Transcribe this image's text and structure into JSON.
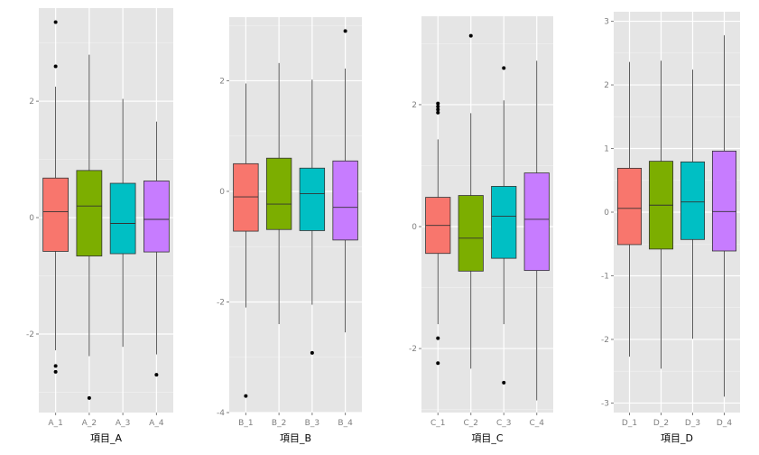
{
  "chart_data": [
    {
      "type": "box",
      "xlabel": "項目_A",
      "ylabel": "",
      "ylim": [
        -3.35,
        3.6
      ],
      "yticks": [
        -2,
        0,
        2
      ],
      "ytick_labels": [
        "-2",
        "0",
        "2"
      ],
      "categories": [
        "A_1",
        "A_2",
        "A_3",
        "A_4"
      ],
      "boxes": [
        {
          "whisker_low": -2.28,
          "q1": -0.58,
          "median": 0.1,
          "q3": 0.68,
          "whisker_high": 2.25,
          "outliers": [
            3.36,
            2.6,
            -2.55,
            -2.65
          ]
        },
        {
          "whisker_low": -2.38,
          "q1": -0.66,
          "median": 0.2,
          "q3": 0.81,
          "whisker_high": 2.8,
          "outliers": [
            -3.1
          ]
        },
        {
          "whisker_low": -2.22,
          "q1": -0.62,
          "median": -0.1,
          "q3": 0.59,
          "whisker_high": 2.04,
          "outliers": []
        },
        {
          "whisker_low": -2.35,
          "q1": -0.59,
          "median": -0.03,
          "q3": 0.63,
          "whisker_high": 1.65,
          "outliers": [
            -2.7
          ]
        }
      ]
    },
    {
      "type": "box",
      "xlabel": "項目_B",
      "ylabel": "",
      "ylim": [
        -4.0,
        3.15
      ],
      "yticks": [
        -4,
        -2,
        0,
        2
      ],
      "ytick_labels": [
        "-4",
        "-2",
        "0",
        "2"
      ],
      "categories": [
        "B_1",
        "B_2",
        "B_3",
        "B_4"
      ],
      "boxes": [
        {
          "whisker_low": -2.1,
          "q1": -0.72,
          "median": -0.1,
          "q3": 0.5,
          "whisker_high": 1.95,
          "outliers": [
            -3.7
          ]
        },
        {
          "whisker_low": -2.4,
          "q1": -0.69,
          "median": -0.23,
          "q3": 0.6,
          "whisker_high": 2.32,
          "outliers": []
        },
        {
          "whisker_low": -2.05,
          "q1": -0.71,
          "median": -0.04,
          "q3": 0.42,
          "whisker_high": 2.02,
          "outliers": [
            -2.92
          ]
        },
        {
          "whisker_low": -2.55,
          "q1": -0.88,
          "median": -0.29,
          "q3": 0.55,
          "whisker_high": 2.22,
          "outliers": [
            2.9
          ]
        }
      ]
    },
    {
      "type": "box",
      "xlabel": "項目_C",
      "ylabel": "",
      "ylim": [
        -3.05,
        3.45
      ],
      "yticks": [
        -2,
        0,
        2
      ],
      "ytick_labels": [
        "-2",
        "0",
        "2"
      ],
      "categories": [
        "C_1",
        "C_2",
        "C_3",
        "C_4"
      ],
      "boxes": [
        {
          "whisker_low": -1.6,
          "q1": -0.44,
          "median": 0.02,
          "q3": 0.48,
          "whisker_high": 1.43,
          "outliers": [
            2.02,
            1.97,
            1.92,
            1.87,
            -1.83,
            -2.24
          ]
        },
        {
          "whisker_low": -2.33,
          "q1": -0.73,
          "median": -0.19,
          "q3": 0.51,
          "whisker_high": 1.86,
          "outliers": [
            3.13
          ]
        },
        {
          "whisker_low": -1.6,
          "q1": -0.52,
          "median": 0.17,
          "q3": 0.66,
          "whisker_high": 2.07,
          "outliers": [
            2.6,
            -2.56
          ]
        },
        {
          "whisker_low": -2.85,
          "q1": -0.72,
          "median": 0.12,
          "q3": 0.88,
          "whisker_high": 2.72,
          "outliers": []
        }
      ]
    },
    {
      "type": "box",
      "xlabel": "項目_D",
      "ylabel": "",
      "ylim": [
        -3.15,
        3.15
      ],
      "yticks": [
        -3,
        -2,
        -1,
        0,
        1,
        2,
        3
      ],
      "ytick_labels": [
        "-3",
        "-2",
        "-1",
        "0",
        "1",
        "2",
        "3"
      ],
      "categories": [
        "D_1",
        "D_2",
        "D_3",
        "D_4"
      ],
      "boxes": [
        {
          "whisker_low": -2.27,
          "q1": -0.51,
          "median": 0.06,
          "q3": 0.69,
          "whisker_high": 2.36,
          "outliers": []
        },
        {
          "whisker_low": -2.46,
          "q1": -0.58,
          "median": 0.11,
          "q3": 0.8,
          "whisker_high": 2.38,
          "outliers": []
        },
        {
          "whisker_low": -1.99,
          "q1": -0.43,
          "median": 0.16,
          "q3": 0.79,
          "whisker_high": 2.24,
          "outliers": []
        },
        {
          "whisker_low": -2.9,
          "q1": -0.61,
          "median": 0.01,
          "q3": 0.96,
          "whisker_high": 2.78,
          "outliers": []
        }
      ]
    }
  ],
  "colors": {
    "fills": [
      "#F8766D",
      "#7CAE00",
      "#00BFC4",
      "#C77CFF"
    ],
    "panel_background": "#E5E5E5",
    "grid_major": "#FFFFFF",
    "grid_minor": "#F2F2F2",
    "stroke": "#333333",
    "tick_text": "#7F7F7F"
  }
}
